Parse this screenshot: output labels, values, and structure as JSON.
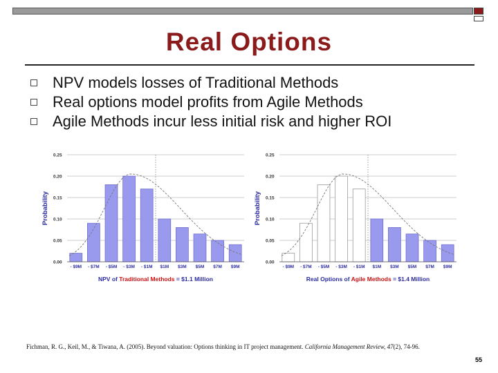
{
  "slide": {
    "title": "Real Options",
    "bullets": [
      "NPV models losses of Traditional Methods",
      "Real options model profits from Agile Methods",
      "Agile Methods incur less initial risk and higher ROI"
    ],
    "citation": {
      "pre": "Fichman, R. G., Keil, M., & Tiwana, A. (2005). Beyond valuation: Options thinking in IT project management. ",
      "journal": "California Management Review, 47",
      "post": "(2), 74-96."
    },
    "page_number": "55"
  },
  "colors": {
    "title": "#8b1b1b",
    "bar": "#9999ee",
    "bar_stroke": "#6f6fd0",
    "caption_blue": "#2b2ba0",
    "caption_red": "#cc1111"
  },
  "chart_data": [
    {
      "type": "bar",
      "ylabel": "Probability",
      "ylim": [
        0,
        0.25
      ],
      "yticks": [
        "0.00",
        "0.05",
        "0.10",
        "0.15",
        "0.20",
        "0.25"
      ],
      "categories": [
        "- $9M",
        "- $7M",
        "- $5M",
        "- $3M",
        "- $1M",
        "$1M",
        "$3M",
        "$5M",
        "$7M",
        "$9M"
      ],
      "values": [
        0.02,
        0.09,
        0.18,
        0.2,
        0.17,
        0.1,
        0.08,
        0.065,
        0.05,
        0.04
      ],
      "filled": [
        true,
        true,
        true,
        true,
        true,
        true,
        true,
        true,
        true,
        true
      ],
      "caption_parts": [
        {
          "text": "NPV of ",
          "color": "blue"
        },
        {
          "text": "Traditional Methods",
          "color": "red"
        },
        {
          "text": " = $1.1 Million",
          "color": "blue"
        }
      ]
    },
    {
      "type": "bar",
      "ylabel": "Probability",
      "ylim": [
        0,
        0.25
      ],
      "yticks": [
        "0.00",
        "0.05",
        "0.10",
        "0.15",
        "0.20",
        "0.25"
      ],
      "categories": [
        "- $9M",
        "- $7M",
        "- $5M",
        "- $3M",
        "- $1M",
        "$1M",
        "$3M",
        "$5M",
        "$7M",
        "$9M"
      ],
      "values": [
        0.02,
        0.09,
        0.18,
        0.2,
        0.17,
        0.1,
        0.08,
        0.065,
        0.05,
        0.04
      ],
      "filled": [
        false,
        false,
        false,
        false,
        false,
        true,
        true,
        true,
        true,
        true
      ],
      "caption_parts": [
        {
          "text": "Real Options of ",
          "color": "blue"
        },
        {
          "text": "Agile Methods",
          "color": "red"
        },
        {
          "text": " = $1.4 Million",
          "color": "blue"
        }
      ]
    }
  ]
}
